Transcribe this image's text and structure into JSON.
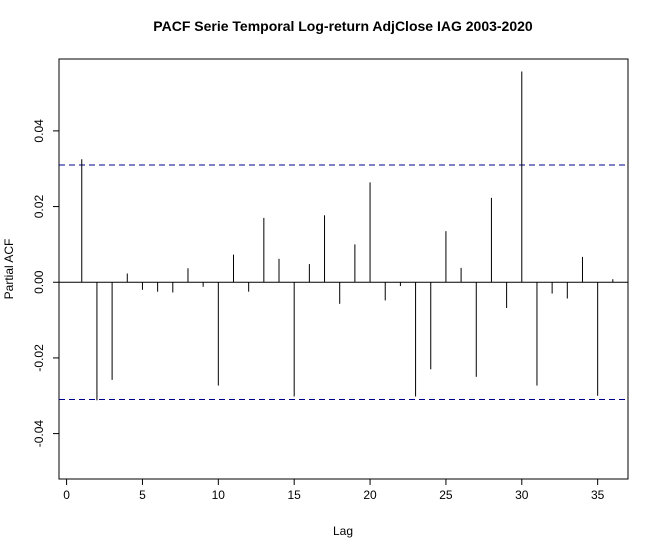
{
  "chart_data": {
    "type": "bar",
    "title": "PACF Serie Temporal Log-return AdjClose IAG 2003-2020",
    "xlabel": "Lag",
    "ylabel": "Partial ACF",
    "xlim": [
      -0.5,
      37
    ],
    "ylim": [
      -0.052,
      0.059
    ],
    "xticks": [
      0,
      5,
      10,
      15,
      20,
      25,
      30,
      35
    ],
    "yticks": [
      -0.04,
      -0.02,
      0.0,
      0.02,
      0.04
    ],
    "ytick_labels": [
      "-0.04",
      "-0.02",
      "0.00",
      "0.02",
      "0.04"
    ],
    "confidence_limit": 0.031,
    "lags": [
      1,
      2,
      3,
      4,
      5,
      6,
      7,
      8,
      9,
      10,
      11,
      12,
      13,
      14,
      15,
      16,
      17,
      18,
      19,
      20,
      21,
      22,
      23,
      24,
      25,
      26,
      27,
      28,
      29,
      30,
      31,
      32,
      33,
      34,
      35,
      36
    ],
    "values": [
      0.0325,
      -0.0312,
      -0.0258,
      0.0023,
      -0.002,
      -0.0025,
      -0.0027,
      0.0037,
      -0.0012,
      -0.0273,
      0.0073,
      -0.0025,
      0.017,
      0.0062,
      -0.0302,
      0.0048,
      0.0177,
      -0.0057,
      0.01,
      0.0264,
      -0.0048,
      -0.001,
      -0.0302,
      -0.023,
      0.0135,
      0.0038,
      -0.025,
      0.0223,
      -0.0068,
      0.0557,
      -0.0273,
      -0.003,
      -0.0043,
      0.0067,
      -0.03,
      0.0008
    ],
    "grid": false,
    "colors": {
      "bars": "#000000",
      "confidence": "#00008B",
      "zero_line": "#000000"
    }
  }
}
